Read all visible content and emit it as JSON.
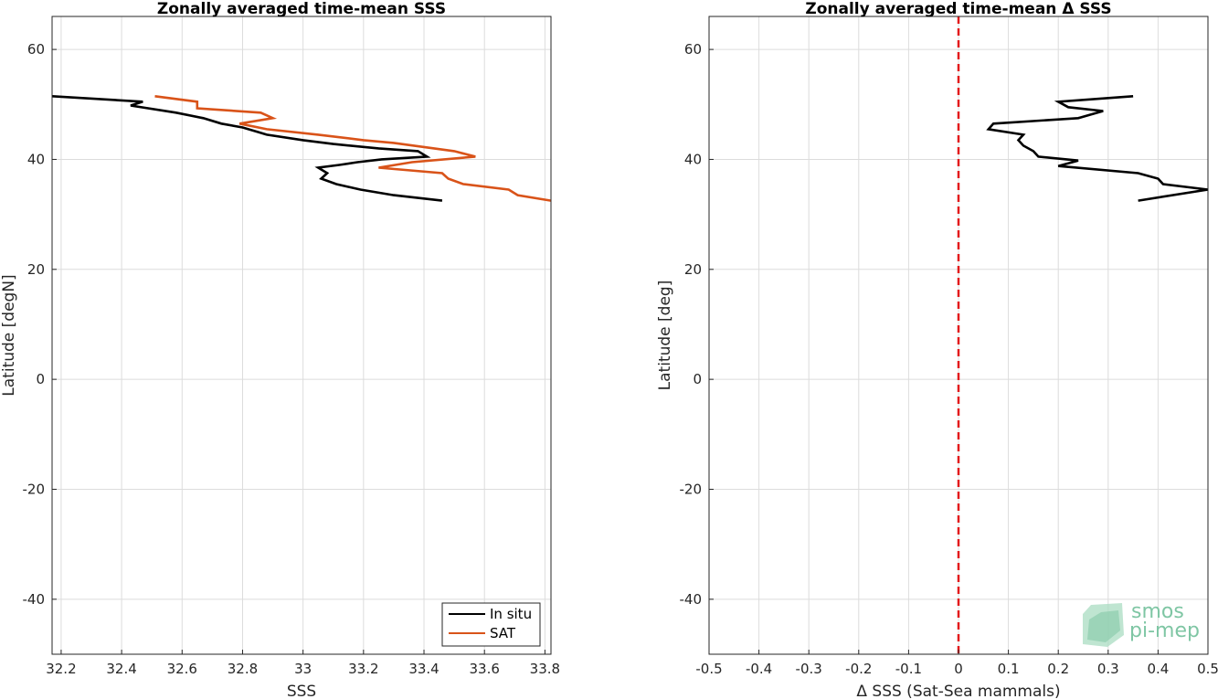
{
  "chart_data": [
    {
      "type": "line",
      "title": "Zonally averaged time-mean SSS",
      "xlabel": "SSS",
      "ylabel": "Latitude [degN]",
      "xlim": [
        32.17,
        33.82
      ],
      "ylim": [
        -50,
        66
      ],
      "xticks": [
        "32.2",
        "32.4",
        "32.6",
        "32.8",
        "33",
        "33.2",
        "33.4",
        "33.6",
        "33.8"
      ],
      "yticks": [
        "-40",
        "-20",
        "0",
        "20",
        "40",
        "60"
      ],
      "grid": true,
      "legend": {
        "position": "bottom-right",
        "entries": [
          "In situ",
          "SAT"
        ]
      },
      "series": [
        {
          "name": "In situ",
          "color": "#000000",
          "points": [
            [
              32.17,
              51.5
            ],
            [
              32.47,
              50.5
            ],
            [
              32.43,
              49.8
            ],
            [
              32.58,
              48.5
            ],
            [
              32.67,
              47.5
            ],
            [
              32.73,
              46.5
            ],
            [
              32.8,
              45.8
            ],
            [
              32.85,
              45
            ],
            [
              32.88,
              44.5
            ],
            [
              33.0,
              43.5
            ],
            [
              33.1,
              42.8
            ],
            [
              33.25,
              42
            ],
            [
              33.38,
              41.5
            ],
            [
              33.41,
              40.5
            ],
            [
              33.26,
              40
            ],
            [
              33.18,
              39.5
            ],
            [
              33.12,
              39
            ],
            [
              33.05,
              38.5
            ],
            [
              33.08,
              37.5
            ],
            [
              33.06,
              36.5
            ],
            [
              33.11,
              35.5
            ],
            [
              33.19,
              34.5
            ],
            [
              33.3,
              33.5
            ],
            [
              33.46,
              32.5
            ]
          ]
        },
        {
          "name": "SAT",
          "color": "#d95319",
          "points": [
            [
              32.51,
              51.5
            ],
            [
              32.65,
              50.5
            ],
            [
              32.65,
              49.3
            ],
            [
              32.86,
              48.5
            ],
            [
              32.9,
              47.5
            ],
            [
              32.79,
              46.5
            ],
            [
              32.88,
              45.5
            ],
            [
              33.05,
              44.5
            ],
            [
              33.2,
              43.5
            ],
            [
              33.3,
              43
            ],
            [
              33.5,
              41.5
            ],
            [
              33.57,
              40.5
            ],
            [
              33.36,
              39.5
            ],
            [
              33.25,
              38.5
            ],
            [
              33.46,
              37.5
            ],
            [
              33.48,
              36.5
            ],
            [
              33.53,
              35.5
            ],
            [
              33.68,
              34.5
            ],
            [
              33.71,
              33.5
            ],
            [
              33.82,
              32.5
            ]
          ]
        }
      ]
    },
    {
      "type": "line",
      "title": "Zonally averaged time-mean Δ SSS",
      "xlabel": "Δ SSS (Sat-Sea mammals)",
      "ylabel": "Latitude [deg]",
      "xlim": [
        -0.5,
        0.5
      ],
      "ylim": [
        -50,
        66
      ],
      "xticks": [
        "-0.5",
        "-0.4",
        "-0.3",
        "-0.2",
        "-0.1",
        "0",
        "0.1",
        "0.2",
        "0.3",
        "0.4",
        "0.5"
      ],
      "yticks": [
        "-40",
        "-20",
        "0",
        "20",
        "40",
        "60"
      ],
      "grid": true,
      "reference_line": {
        "x": 0,
        "color": "#e31a1c",
        "style": "dashed"
      },
      "series": [
        {
          "color": "#000000",
          "points": [
            [
              0.35,
              51.5
            ],
            [
              0.2,
              50.5
            ],
            [
              0.22,
              49.5
            ],
            [
              0.29,
              48.8
            ],
            [
              0.24,
              47.5
            ],
            [
              0.07,
              46.5
            ],
            [
              0.06,
              45.5
            ],
            [
              0.13,
              44.5
            ],
            [
              0.12,
              43.5
            ],
            [
              0.13,
              42.5
            ],
            [
              0.15,
              41.5
            ],
            [
              0.16,
              40.5
            ],
            [
              0.24,
              39.8
            ],
            [
              0.2,
              38.8
            ],
            [
              0.36,
              37.5
            ],
            [
              0.4,
              36.5
            ],
            [
              0.41,
              35.5
            ],
            [
              0.5,
              34.5
            ],
            [
              0.36,
              32.5
            ]
          ]
        }
      ]
    }
  ],
  "logo": {
    "line1": "smos",
    "line2": "pi-mep"
  }
}
